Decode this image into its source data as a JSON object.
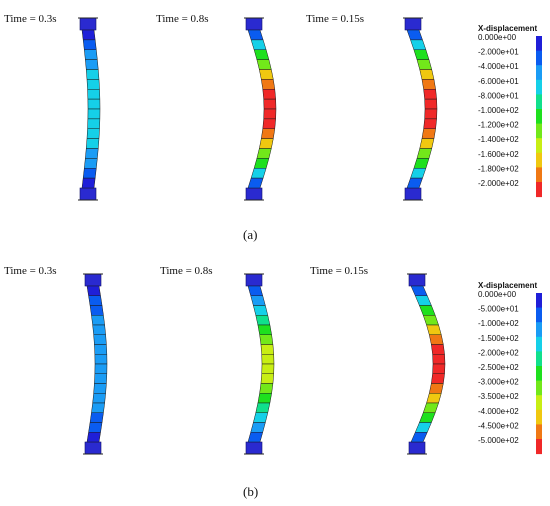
{
  "panels": [
    {
      "label": "(a)",
      "legend": {
        "title": "X-displacement",
        "ticks": [
          "0.000e+00",
          "-2.000e+01",
          "-4.000e+01",
          "-6.000e+01",
          "-8.000e+01",
          "-1.000e+02",
          "-1.200e+02",
          "-1.400e+02",
          "-1.600e+02",
          "-1.800e+02",
          "-2.000e+02"
        ],
        "colors": [
          "#1f1fd8",
          "#0a5cf0",
          "#1a9cf5",
          "#15d0e8",
          "#10e08c",
          "#1ee01e",
          "#72e81a",
          "#c8ee14",
          "#f0c810",
          "#f07814",
          "#f02828"
        ]
      },
      "columns": [
        {
          "time": "Time = 0.3s",
          "peak": 0.34,
          "sag": 6,
          "hot": false
        },
        {
          "time": "Time = 0.8s",
          "peak": 1.0,
          "sag": 16,
          "hot": true
        },
        {
          "time": "Time = 0.15s",
          "peak": 1.0,
          "sag": 18,
          "hot": true
        }
      ]
    },
    {
      "label": "(b)",
      "legend": {
        "title": "X-displacement",
        "ticks": [
          "0.000e+00",
          "-5.000e+01",
          "-1.000e+02",
          "-1.500e+02",
          "-2.000e+02",
          "-2.500e+02",
          "-3.000e+02",
          "-3.500e+02",
          "-4.000e+02",
          "-4.500e+02",
          "-5.000e+02"
        ],
        "colors": [
          "#1f1fd8",
          "#0a5cf0",
          "#1a9cf5",
          "#15d0e8",
          "#10e08c",
          "#1ee01e",
          "#72e81a",
          "#c8ee14",
          "#f0c810",
          "#f07814",
          "#f02828"
        ]
      },
      "columns": [
        {
          "time": "Time = 0.3s",
          "peak": 0.25,
          "sag": 8,
          "hot": false
        },
        {
          "time": "Time = 0.8s",
          "peak": 0.68,
          "sag": 14,
          "hot": true
        },
        {
          "time": "Time = 0.15s",
          "peak": 1.0,
          "sag": 22,
          "hot": true
        }
      ]
    }
  ]
}
